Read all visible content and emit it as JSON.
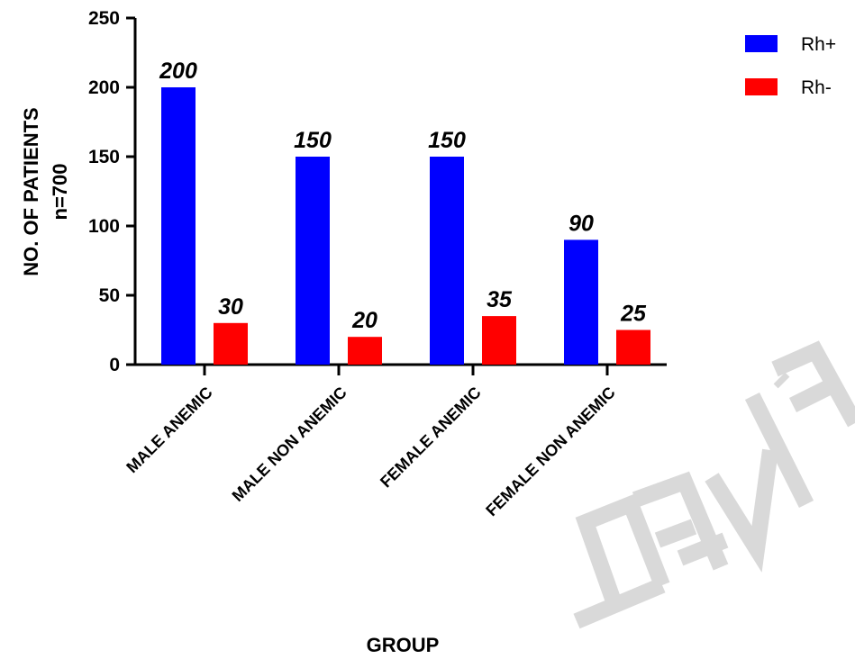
{
  "chart_data": {
    "type": "bar",
    "categories": [
      "MALE ANEMIC",
      "MALE NON ANEMIC",
      "FEMALE  ANEMIC",
      "FEMALE NON ANEMIC"
    ],
    "series": [
      {
        "name": "Rh+",
        "values": [
          200,
          150,
          150,
          90
        ],
        "color": "#0000ff"
      },
      {
        "name": "Rh-",
        "values": [
          30,
          20,
          35,
          25
        ],
        "color": "#ff0000"
      }
    ],
    "title": "",
    "xlabel": "GROUP",
    "ylabel_line1": "NO. OF PATIENTS",
    "ylabel_line2": "n=700",
    "ylim": [
      0,
      250
    ],
    "yticks": [
      0,
      50,
      100,
      150,
      200,
      250
    ],
    "grid": false,
    "legend_position": "top-right",
    "watermark_color": "#d9d9d9"
  }
}
